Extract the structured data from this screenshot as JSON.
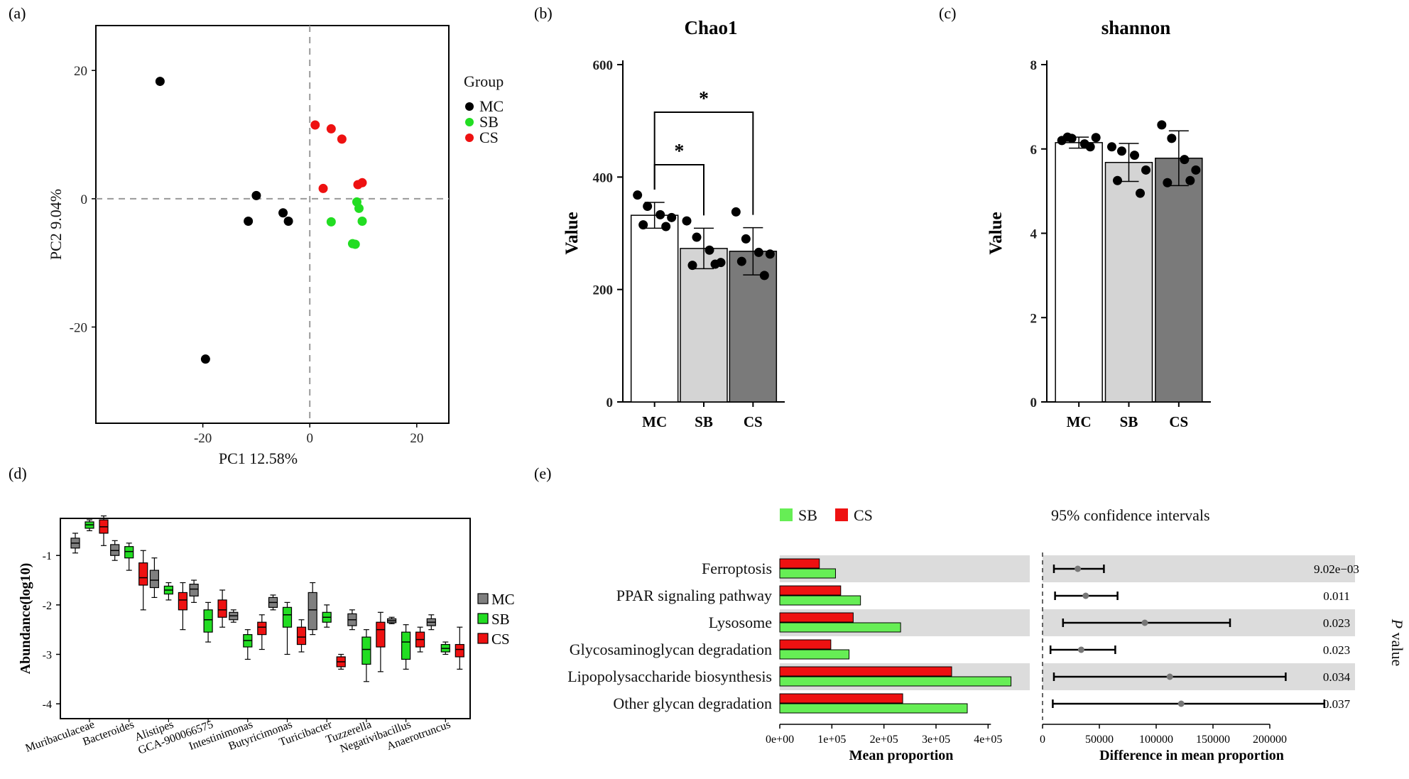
{
  "panels": {
    "a": {
      "letter": "(a)",
      "chart_data": {
        "type": "scatter",
        "xlabel": "PC1 12.58%",
        "ylabel": "PC2 9.04%",
        "xlim": [
          -40,
          26
        ],
        "ylim": [
          -35,
          27
        ],
        "xticks": [
          -20,
          0,
          20
        ],
        "yticks": [
          -20,
          0,
          20
        ],
        "legend_title": "Group",
        "series": [
          {
            "name": "MC",
            "color": "#000000",
            "points": [
              [
                -28,
                18.3
              ],
              [
                -19.5,
                -25
              ],
              [
                -10,
                0.5
              ],
              [
                -11.5,
                -3.5
              ],
              [
                -5,
                -2.2
              ],
              [
                -4,
                -3.5
              ]
            ]
          },
          {
            "name": "SB",
            "color": "#22dd22",
            "points": [
              [
                8.8,
                -0.5
              ],
              [
                9.2,
                -1.5
              ],
              [
                9.8,
                -3.5
              ],
              [
                4,
                -3.6
              ],
              [
                8,
                -7
              ],
              [
                8.5,
                -7.1
              ]
            ]
          },
          {
            "name": "CS",
            "color": "#ee1111",
            "points": [
              [
                1,
                11.5
              ],
              [
                4,
                10.9
              ],
              [
                6,
                9.3
              ],
              [
                2.5,
                1.6
              ],
              [
                9,
                2.2
              ],
              [
                9.8,
                2.5
              ]
            ]
          }
        ]
      }
    },
    "b": {
      "letter": "(b)",
      "chart_data": {
        "type": "bar",
        "title": "Chao1",
        "ylabel": "Value",
        "ylim": [
          0,
          600
        ],
        "yticks": [
          0,
          200,
          400,
          600
        ],
        "categories": [
          "MC",
          "SB",
          "CS"
        ],
        "values": [
          332,
          273,
          268
        ],
        "errors": [
          23,
          36,
          42
        ],
        "colors": [
          "#ffffff",
          "#d4d4d4",
          "#7a7a7a"
        ],
        "points": [
          [
            368,
            348,
            333,
            328,
            315,
            312
          ],
          [
            322,
            293,
            270,
            248,
            243,
            245
          ],
          [
            338,
            290,
            266,
            263,
            250,
            225
          ]
        ],
        "significance": [
          {
            "from": 0,
            "to": 1,
            "label": "*"
          },
          {
            "from": 0,
            "to": 2,
            "label": "*"
          }
        ]
      }
    },
    "c": {
      "letter": "(c)",
      "chart_data": {
        "type": "bar",
        "title": "shannon",
        "ylabel": "Value",
        "ylim": [
          0,
          8
        ],
        "yticks": [
          0,
          2,
          4,
          6,
          8
        ],
        "categories": [
          "MC",
          "SB",
          "CS"
        ],
        "values": [
          6.15,
          5.68,
          5.78
        ],
        "errors": [
          0.13,
          0.45,
          0.65
        ],
        "colors": [
          "#ffffff",
          "#d4d4d4",
          "#7a7a7a"
        ],
        "points": [
          [
            6.2,
            6.25,
            6.12,
            6.27,
            6.28,
            6.05
          ],
          [
            6.05,
            5.95,
            5.85,
            5.5,
            5.25,
            4.95
          ],
          [
            6.57,
            6.25,
            5.75,
            5.5,
            5.2,
            5.25
          ]
        ]
      }
    },
    "d": {
      "letter": "(d)",
      "chart_data": {
        "type": "boxplot",
        "ylabel": "Abundance(log10)",
        "ylim": [
          -4.3,
          -0.25
        ],
        "yticks": [
          -1,
          -2,
          -3,
          -4
        ],
        "categories": [
          "Muribaculaceae",
          "Bacteroides",
          "Alistipes",
          "GCA-900066575",
          "Intestinimonas",
          "Butyricimonas",
          "Turicibacter",
          "Tuzzerella",
          "Negativibacillus",
          "Anaerotruncus"
        ],
        "groups": [
          {
            "name": "MC",
            "color": "#7f7f7f"
          },
          {
            "name": "SB",
            "color": "#22dd22"
          },
          {
            "name": "CS",
            "color": "#ee1111"
          }
        ],
        "boxes": [
          [
            [
              -0.95,
              -0.85,
              -0.75,
              -0.65,
              -0.55
            ],
            [
              -0.5,
              -0.45,
              -0.38,
              -0.32,
              -0.28
            ],
            [
              -0.8,
              -0.55,
              -0.42,
              -0.28,
              -0.2
            ]
          ],
          [
            [
              -1.1,
              -1.0,
              -0.9,
              -0.78,
              -0.7
            ],
            [
              -1.3,
              -1.05,
              -0.92,
              -0.82,
              -0.75
            ],
            [
              -2.1,
              -1.6,
              -1.45,
              -1.15,
              -0.9
            ]
          ],
          [
            [
              -1.85,
              -1.65,
              -1.5,
              -1.3,
              -1.05
            ],
            [
              -1.9,
              -1.78,
              -1.7,
              -1.62,
              -1.55
            ],
            [
              -2.5,
              -2.1,
              -1.9,
              -1.75,
              -1.55
            ]
          ],
          [
            [
              -1.95,
              -1.82,
              -1.68,
              -1.58,
              -1.5
            ],
            [
              -2.75,
              -2.55,
              -2.3,
              -2.1,
              -1.95
            ],
            [
              -2.45,
              -2.25,
              -2.1,
              -1.9,
              -1.7
            ]
          ],
          [
            [
              -2.35,
              -2.3,
              -2.22,
              -2.15,
              -2.1
            ],
            [
              -3.1,
              -2.85,
              -2.72,
              -2.6,
              -2.5
            ],
            [
              -2.9,
              -2.6,
              -2.45,
              -2.35,
              -2.2
            ]
          ],
          [
            [
              -2.1,
              -2.05,
              -1.95,
              -1.85,
              -1.8
            ],
            [
              -3.0,
              -2.45,
              -2.2,
              -2.05,
              -1.95
            ],
            [
              -2.95,
              -2.8,
              -2.65,
              -2.45,
              -2.3
            ]
          ],
          [
            [
              -2.6,
              -2.5,
              -2.1,
              -1.75,
              -1.55
            ],
            [
              -2.45,
              -2.35,
              -2.25,
              -2.15,
              -2.0
            ],
            [
              -3.3,
              -3.25,
              -3.15,
              -3.05,
              -3.0
            ]
          ],
          [
            [
              -2.5,
              -2.42,
              -2.3,
              -2.18,
              -2.1
            ],
            [
              -3.55,
              -3.2,
              -2.9,
              -2.65,
              -2.5
            ],
            [
              -3.35,
              -2.85,
              -2.5,
              -2.35,
              -2.15
            ]
          ],
          [
            [
              -2.38,
              -2.36,
              -2.32,
              -2.28,
              -2.25
            ],
            [
              -3.3,
              -3.1,
              -2.75,
              -2.55,
              -2.4
            ],
            [
              -2.95,
              -2.85,
              -2.7,
              -2.55,
              -2.45
            ]
          ],
          [
            [
              -2.5,
              -2.42,
              -2.35,
              -2.28,
              -2.2
            ],
            [
              -3.0,
              -2.95,
              -2.88,
              -2.8,
              -2.75
            ],
            [
              -3.3,
              -3.05,
              -2.9,
              -2.8,
              -2.45
            ]
          ]
        ]
      }
    },
    "e": {
      "letter": "(e)",
      "legend": [
        {
          "name": "SB",
          "color": "#66ee55"
        },
        {
          "name": "CS",
          "color": "#ee1111"
        }
      ],
      "ci_title": "95% confidence intervals",
      "pvalue_label_italic": "P",
      "pvalue_label_rest": " value",
      "chart_data": [
        {
          "type": "bar",
          "orientation": "horizontal",
          "xlabel": "Mean proportion",
          "xlim": [
            0,
            480000
          ],
          "xticks": [
            0,
            100000,
            200000,
            300000,
            400000
          ],
          "xtick_labels": [
            "0e+00",
            "1e+05",
            "2e+05",
            "3e+05",
            "4e+05"
          ],
          "categories": [
            "Ferroptosis",
            "PPAR signaling pathway",
            "Lysosome",
            "Glycosaminoglycan degradation",
            "Lipopolysaccharide biosynthesis",
            "Other glycan degradation"
          ],
          "series": [
            {
              "name": "SB",
              "values": [
                107000,
                155000,
                232000,
                133000,
                444000,
                360000
              ]
            },
            {
              "name": "CS",
              "values": [
                76000,
                117000,
                141000,
                98000,
                330000,
                236000
              ]
            }
          ]
        },
        {
          "type": "errorbar",
          "xlabel": "Difference in mean proportion",
          "xlim": [
            0,
            275000
          ],
          "xticks": [
            0,
            50000,
            100000,
            150000,
            200000
          ],
          "estimates": [
            31000,
            38000,
            90000,
            34000,
            112000,
            122000
          ],
          "ci_low": [
            10000,
            11000,
            18000,
            7000,
            10000,
            9000
          ],
          "ci_high": [
            54000,
            66000,
            165000,
            64000,
            214000,
            248000
          ],
          "p_values": [
            "9.02e−03",
            "0.011",
            "0.023",
            "0.023",
            "0.034",
            "0.037"
          ]
        }
      ]
    }
  }
}
